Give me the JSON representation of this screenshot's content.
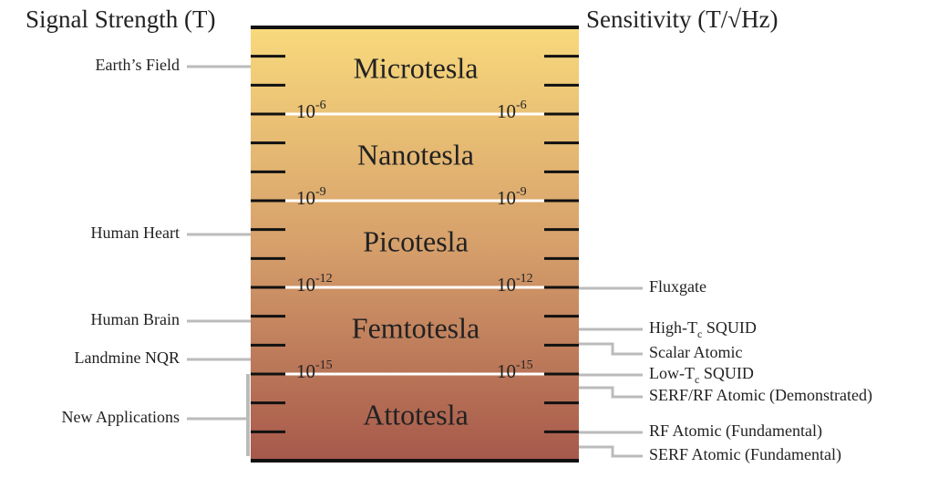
{
  "header": {
    "left_title": "Signal Strength (T)",
    "right_title": "Sensitivity (T/√Hz)"
  },
  "bands": [
    "Microtesla",
    "Nanotesla",
    "Picotesla",
    "Femtotesla",
    "Attotesla"
  ],
  "boundaries": [
    {
      "base": "10",
      "exp": "-6"
    },
    {
      "base": "10",
      "exp": "-9"
    },
    {
      "base": "10",
      "exp": "-12"
    },
    {
      "base": "10",
      "exp": "-15"
    }
  ],
  "signals": [
    "Earth’s Field",
    "Human Heart",
    "Human Brain",
    "Landmine NQR",
    "New Applications"
  ],
  "sensors": [
    {
      "text": "Fluxgate"
    },
    {
      "text": "High-T",
      "sub": "c",
      "after": " SQUID"
    },
    {
      "text": "Scalar Atomic"
    },
    {
      "text": "Low-T",
      "sub": "c",
      "after": " SQUID"
    },
    {
      "text": "SERF/RF Atomic (Demonstrated)"
    },
    {
      "text": "RF Atomic (Fundamental)"
    },
    {
      "text": "SERF Atomic (Fundamental)"
    }
  ]
}
